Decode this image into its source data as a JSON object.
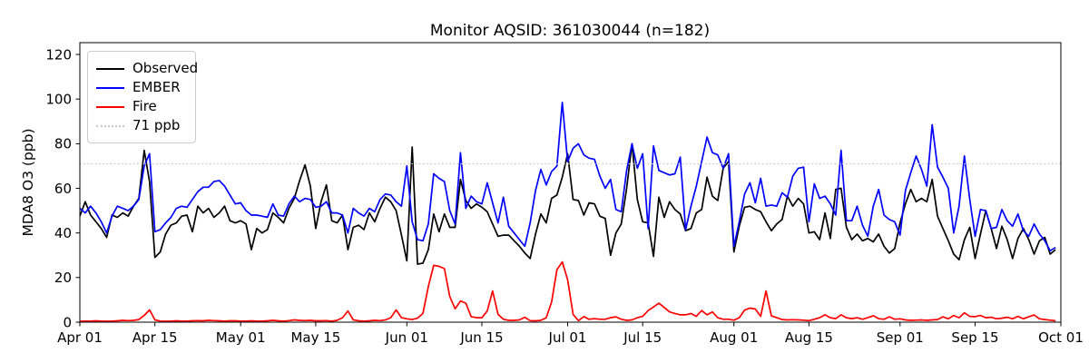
{
  "title": "Monitor AQSID: 361030044 (n=182)",
  "y_axis_label": "MDA8 O3 (ppb)",
  "colors": {
    "observed": "#000000",
    "ember": "#0000ff",
    "fire": "#ff0000",
    "threshold": "#c8c8c8",
    "axis": "#000000",
    "legend_border": "#cccccc"
  },
  "chart_data": {
    "type": "line",
    "title": "Monitor AQSID: 361030044 (n=182)",
    "xlabel": "",
    "ylabel": "MDA8 O3 (ppb)",
    "x_description": "daily values, Apr 01 through Sep 30 (day index 0-182)",
    "xlim_days": [
      0,
      183
    ],
    "ylim": [
      0,
      125.3
    ],
    "grid": false,
    "legend_position": "upper left",
    "xticks": [
      {
        "label": "Apr 01",
        "day": 0
      },
      {
        "label": "Apr 15",
        "day": 14
      },
      {
        "label": "May 01",
        "day": 30
      },
      {
        "label": "May 15",
        "day": 44
      },
      {
        "label": "Jun 01",
        "day": 61
      },
      {
        "label": "Jun 15",
        "day": 75
      },
      {
        "label": "Jul 01",
        "day": 91
      },
      {
        "label": "Jul 15",
        "day": 105
      },
      {
        "label": "Aug 01",
        "day": 122
      },
      {
        "label": "Aug 15",
        "day": 136
      },
      {
        "label": "Sep 01",
        "day": 153
      },
      {
        "label": "Sep 15",
        "day": 167
      },
      {
        "label": "Oct 01",
        "day": 183
      }
    ],
    "yticks": [
      0,
      20,
      40,
      60,
      80,
      100,
      120
    ],
    "threshold": {
      "label": "71 ppb",
      "value": 71,
      "color": "#c8c8c8",
      "style": "dotted"
    },
    "series": [
      {
        "name": "Observed",
        "color": "#000000",
        "values": [
          47.5,
          54,
          48,
          45,
          42,
          38,
          48,
          47,
          49,
          47.5,
          52,
          55.5,
          77,
          63,
          29,
          31.5,
          39.5,
          43.5,
          44.5,
          47.5,
          48,
          40.5,
          52,
          49,
          51,
          47,
          49,
          52,
          45.5,
          44.5,
          45.5,
          44,
          32.5,
          42,
          40,
          41.5,
          49,
          47,
          44.5,
          51,
          55.5,
          63.5,
          70.5,
          61,
          42,
          54,
          61.5,
          45.5,
          44.5,
          48,
          32.5,
          42.5,
          43.5,
          41.5,
          49,
          45,
          51,
          56,
          54,
          50,
          39,
          27.5,
          78.5,
          26,
          26.5,
          32.5,
          48.5,
          40.5,
          48.5,
          42.5,
          42.5,
          64,
          54.5,
          51,
          53,
          51.5,
          49.5,
          44,
          38.5,
          39,
          39,
          36.5,
          34,
          31,
          28.5,
          39.5,
          48.5,
          44.5,
          55.5,
          57,
          65,
          75.5,
          55,
          54.5,
          48,
          53.5,
          53,
          47.5,
          46.5,
          30,
          40,
          44,
          60,
          80,
          55,
          45,
          44.5,
          29.5,
          56,
          47,
          54,
          50.5,
          48.5,
          41,
          42,
          49,
          50.5,
          65,
          56.5,
          54.5,
          69,
          72,
          31.5,
          43,
          51.5,
          52,
          50.5,
          49.5,
          45,
          41,
          44,
          46,
          56.5,
          52,
          55.5,
          53,
          40,
          40.5,
          37,
          49,
          37.5,
          59.5,
          60,
          42.5,
          37,
          39.5,
          36.5,
          37.5,
          36,
          39.5,
          34,
          31,
          33,
          44.5,
          53,
          59.5,
          54,
          55.5,
          54,
          64,
          47.5,
          42,
          36.5,
          30.5,
          28,
          37,
          42.5,
          28.5,
          39.5,
          50,
          42,
          33,
          43,
          37,
          28.5,
          37.5,
          42,
          37,
          30.5,
          36.5,
          38,
          30.5,
          32.5
        ]
      },
      {
        "name": "EMBER",
        "color": "#0000ff",
        "values": [
          51,
          49,
          52,
          49,
          45,
          40,
          47.5,
          52,
          51,
          50,
          52,
          55,
          70,
          75.5,
          40.5,
          41.5,
          44.5,
          47,
          51,
          52,
          51.5,
          55,
          58.5,
          60.5,
          60.5,
          63,
          63.5,
          61,
          57,
          53,
          53.5,
          50,
          48,
          48,
          47.5,
          47,
          53,
          48,
          47.5,
          53,
          56.5,
          54,
          55.5,
          55,
          51.5,
          52,
          54,
          49,
          49,
          48,
          40,
          51,
          49,
          47.5,
          51,
          49.5,
          55,
          57.5,
          57,
          54,
          52,
          70,
          45,
          37,
          36.5,
          44,
          66.5,
          64.5,
          63,
          50,
          44,
          76,
          51,
          56.5,
          54,
          53,
          62.5,
          53.5,
          44.5,
          56,
          43,
          40,
          37,
          34,
          44.5,
          59,
          68.5,
          61.5,
          67.5,
          70,
          98.5,
          72,
          78,
          80,
          75,
          73.5,
          73,
          65.5,
          60,
          64,
          50.5,
          49.5,
          68,
          80,
          69,
          75.5,
          42,
          79,
          68,
          67,
          66,
          66.5,
          74,
          41.5,
          52,
          61,
          72,
          83,
          76,
          75,
          69,
          75.5,
          34,
          45,
          57.5,
          62.5,
          53.5,
          64.5,
          52,
          52.5,
          52,
          58,
          56,
          65.5,
          69,
          69.5,
          45,
          62,
          55.5,
          56.5,
          53,
          48,
          77,
          45.5,
          45.5,
          52,
          43.5,
          38.5,
          52,
          59.5,
          48,
          46,
          45,
          39,
          59,
          67,
          74.5,
          68.5,
          61,
          88.5,
          69.5,
          65,
          60,
          40,
          52,
          74.5,
          55,
          38.5,
          50.5,
          50,
          42,
          42.5,
          50.5,
          45.5,
          43,
          48.5,
          41,
          38.5,
          44,
          39.5,
          36.5,
          32,
          33.5
        ]
      },
      {
        "name": "Fire",
        "color": "#ff0000",
        "values": [
          0.4,
          0.5,
          0.5,
          0.6,
          0.5,
          0.4,
          0.5,
          0.6,
          0.8,
          0.7,
          0.8,
          1.2,
          3,
          5.5,
          1,
          0.5,
          0.4,
          0.5,
          0.6,
          0.5,
          0.5,
          0.6,
          0.7,
          0.6,
          0.8,
          0.7,
          0.6,
          0.5,
          0.6,
          0.6,
          0.5,
          0.5,
          0.6,
          0.5,
          0.5,
          0.6,
          0.8,
          0.6,
          0.5,
          0.7,
          1,
          0.8,
          0.7,
          0.8,
          0.6,
          0.6,
          0.7,
          0.5,
          0.8,
          2,
          5,
          1,
          0.6,
          0.5,
          0.6,
          0.8,
          0.7,
          1,
          2,
          5.5,
          2,
          1.5,
          1.2,
          1.8,
          4,
          16,
          25.5,
          25,
          24,
          11.5,
          6,
          9.5,
          8.5,
          2.5,
          2,
          2,
          5,
          14,
          3.5,
          1.3,
          0.8,
          0.8,
          1,
          2.2,
          0.7,
          0.6,
          0.8,
          2,
          9,
          23.5,
          27,
          19,
          3.5,
          0.7,
          2.5,
          1.3,
          1.6,
          1.3,
          1.3,
          2,
          2.4,
          1.3,
          0.8,
          1,
          2,
          2.6,
          5.2,
          6.8,
          8.5,
          6.6,
          4.6,
          3.9,
          3.3,
          3.3,
          3.9,
          2.6,
          5.2,
          3.3,
          4.6,
          2,
          1.3,
          1.3,
          0.9,
          2,
          5.4,
          6.3,
          5.9,
          2.6,
          14,
          2.8,
          2,
          1.2,
          1,
          1.1,
          1,
          0.9,
          0.7,
          1.3,
          2,
          3.3,
          2,
          1.6,
          3.3,
          2,
          1.6,
          2,
          1.3,
          2,
          2.9,
          1.6,
          1.3,
          2.4,
          1.3,
          1.5,
          1,
          0.8,
          0.9,
          1,
          0.8,
          1,
          1.2,
          2.4,
          1.5,
          3,
          2,
          4.2,
          2.6,
          2.5,
          3,
          2,
          2.2,
          1.5,
          1.8,
          2.2,
          1.5,
          2.6,
          1.5,
          2.4,
          3.2,
          1.5,
          1.2,
          0.9,
          0.6
        ]
      }
    ]
  }
}
